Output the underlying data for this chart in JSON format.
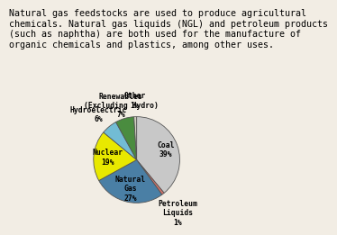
{
  "title_text": "Natural gas feedstocks are used to produce agricultural\nchemicals. Natural gas liquids (NGL) and petroleum products\n(such as naphtha) are both used for the manufacture of\norganic chemicals and plastics, among other uses.",
  "slices": [
    {
      "label": "Coal\n39%",
      "value": 39,
      "color": "#c8c8c8"
    },
    {
      "label": "Petroleum\nLiquids\n1%",
      "value": 1,
      "color": "#d4736a"
    },
    {
      "label": "Natural\nGas\n27%",
      "value": 27,
      "color": "#4a7fa5"
    },
    {
      "label": "Nuclear\n19%",
      "value": 19,
      "color": "#e8e800"
    },
    {
      "label": "Hydroelectric\n6%",
      "value": 6,
      "color": "#72bcd4"
    },
    {
      "label": "Renewables\n(Excluding Hydro)\n7%",
      "value": 7,
      "color": "#4a8c3f"
    },
    {
      "label": "Other\n1%",
      "value": 1,
      "color": "#d0d0c0"
    }
  ],
  "label_radii": [
    0.72,
    1.55,
    0.68,
    0.68,
    1.38,
    1.32,
    1.38
  ],
  "start_angle": 90,
  "background_color": "#f2ede4",
  "font_family": "monospace",
  "label_fontsize": 5.8,
  "title_fontsize": 7.2
}
